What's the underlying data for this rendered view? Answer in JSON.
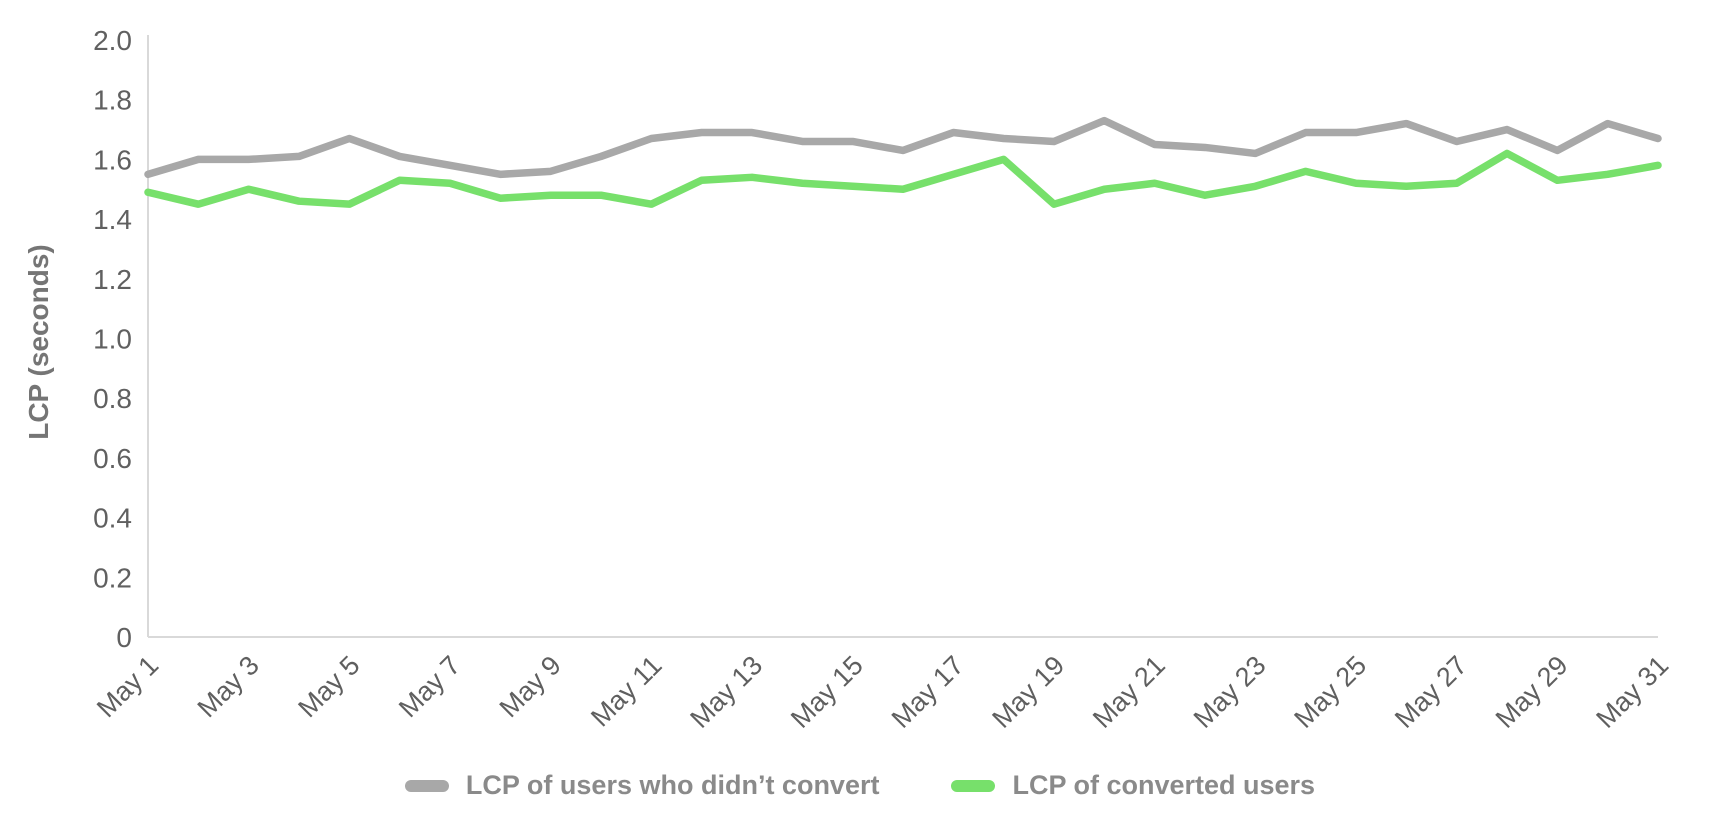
{
  "page": {
    "background_color": "#ffffff"
  },
  "chart_data": {
    "type": "line",
    "title": "",
    "xlabel": "",
    "ylabel": "LCP (seconds)",
    "ylim": [
      0,
      2.0
    ],
    "ytick_step": 0.2,
    "grid": false,
    "legend_position": "bottom",
    "axis_line_color": "#d9d9d9",
    "tick_label_color": "#5f5f5f",
    "legend_text_color": "#8a8a8a",
    "categories": [
      "May 1",
      "May 2",
      "May 3",
      "May 4",
      "May 5",
      "May 6",
      "May 7",
      "May 8",
      "May 9",
      "May 10",
      "May 11",
      "May 12",
      "May 13",
      "May 14",
      "May 15",
      "May 16",
      "May 17",
      "May 18",
      "May 19",
      "May 20",
      "May 21",
      "May 22",
      "May 23",
      "May 24",
      "May 25",
      "May 26",
      "May 27",
      "May 28",
      "May 29",
      "May 30",
      "May 31"
    ],
    "x_tick_labels": [
      "May 1",
      "May 3",
      "May 5",
      "May 7",
      "May 9",
      "May 11",
      "May 13",
      "May 15",
      "May 17",
      "May 19",
      "May 21",
      "May 23",
      "May 25",
      "May 27",
      "May 29",
      "May 31"
    ],
    "x_tick_every": 2,
    "series": [
      {
        "name": "LCP of users who didn’t convert",
        "color": "#a8a8a8",
        "values": [
          1.55,
          1.6,
          1.6,
          1.61,
          1.67,
          1.61,
          1.58,
          1.55,
          1.56,
          1.61,
          1.67,
          1.69,
          1.69,
          1.66,
          1.66,
          1.63,
          1.69,
          1.67,
          1.66,
          1.73,
          1.65,
          1.64,
          1.62,
          1.69,
          1.69,
          1.72,
          1.66,
          1.7,
          1.63,
          1.72,
          1.67
        ]
      },
      {
        "name": "LCP of converted users",
        "color": "#77e06b",
        "values": [
          1.49,
          1.45,
          1.5,
          1.46,
          1.45,
          1.53,
          1.52,
          1.47,
          1.48,
          1.48,
          1.45,
          1.53,
          1.54,
          1.52,
          1.51,
          1.5,
          1.55,
          1.6,
          1.45,
          1.5,
          1.52,
          1.48,
          1.51,
          1.56,
          1.52,
          1.51,
          1.52,
          1.62,
          1.53,
          1.55,
          1.58
        ]
      }
    ]
  }
}
